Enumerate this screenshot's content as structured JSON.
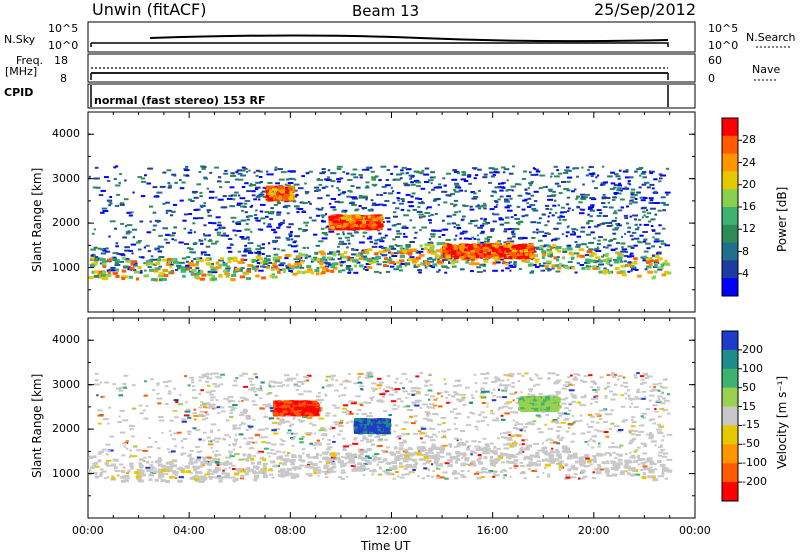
{
  "header": {
    "station": "Unwin (fitACF)",
    "beam": "Beam 13",
    "date": "25/Sep/2012"
  },
  "status_panels": {
    "nsky_label": "N.Sky",
    "nsky_ticks": [
      "10^5",
      "10^0"
    ],
    "nsearch_label": "N.Search",
    "nsearch_ticks": [
      "10^5",
      "10^0"
    ],
    "freq_label": [
      "Freq.",
      "[MHz]"
    ],
    "freq_ticks": [
      "18",
      "8"
    ],
    "nave_label": "Nave",
    "nave_ticks": [
      "60",
      "0"
    ],
    "cpid_label": "CPID",
    "cpid_text": "normal (fast stereo) 153 RF"
  },
  "chart_data": [
    {
      "type": "heatmap",
      "name": "power",
      "ylabel": "Slant Range [km]",
      "ylim": [
        0,
        4500
      ],
      "yticks": [
        "1000",
        "2000",
        "3000",
        "4000"
      ],
      "colorbar": {
        "label": "Power [dB]",
        "ticks": [
          "28",
          "24",
          "20",
          "16",
          "12",
          "8",
          "4"
        ],
        "colors": [
          "#ff0000",
          "#ff5a00",
          "#ff9600",
          "#e6c800",
          "#8ad050",
          "#3cb371",
          "#2e8b57",
          "#1e6e8c",
          "#1e3ca0",
          "#0000ff"
        ]
      },
      "features": [
        {
          "range_km": 1000,
          "t_start_h": 0,
          "t_end_h": 22.9,
          "power_db": 18
        },
        {
          "range_km": 1400,
          "t_start_h": 14,
          "t_end_h": 17.5,
          "power_db": 26
        },
        {
          "range_km": 2050,
          "t_start_h": 9.5,
          "t_end_h": 11.5,
          "power_db": 26
        },
        {
          "range_km": 2700,
          "t_start_h": 7,
          "t_end_h": 8,
          "power_db": 24
        }
      ]
    },
    {
      "type": "heatmap",
      "name": "velocity",
      "ylabel": "Slant Range [km]",
      "ylim": [
        0,
        4500
      ],
      "yticks": [
        "1000",
        "2000",
        "3000",
        "4000"
      ],
      "colorbar": {
        "label": "Velocity [m s⁻¹]",
        "ticks": [
          "200",
          "100",
          "50",
          "15",
          "-15",
          "-50",
          "-100",
          "-200"
        ],
        "colors": [
          "#1e3cc8",
          "#1e8c8c",
          "#3cb371",
          "#9ad050",
          "#c8c8c8",
          "#e6c800",
          "#ff9600",
          "#ff5a00",
          "#ff0000"
        ]
      },
      "features": [
        {
          "range_km": 1100,
          "t_start_h": 0,
          "t_end_h": 22.9,
          "velocity_ms": 0
        },
        {
          "range_km": 2100,
          "t_start_h": 10.5,
          "t_end_h": 11.8,
          "velocity_ms": 200
        },
        {
          "range_km": 2500,
          "t_start_h": 7.3,
          "t_end_h": 9,
          "velocity_ms": -200
        },
        {
          "range_km": 2600,
          "t_start_h": 17,
          "t_end_h": 18.5,
          "velocity_ms": 40
        }
      ]
    }
  ],
  "x_axis": {
    "label": "Time UT",
    "ticks": [
      "00:00",
      "04:00",
      "08:00",
      "12:00",
      "16:00",
      "20:00",
      "00:00"
    ]
  }
}
